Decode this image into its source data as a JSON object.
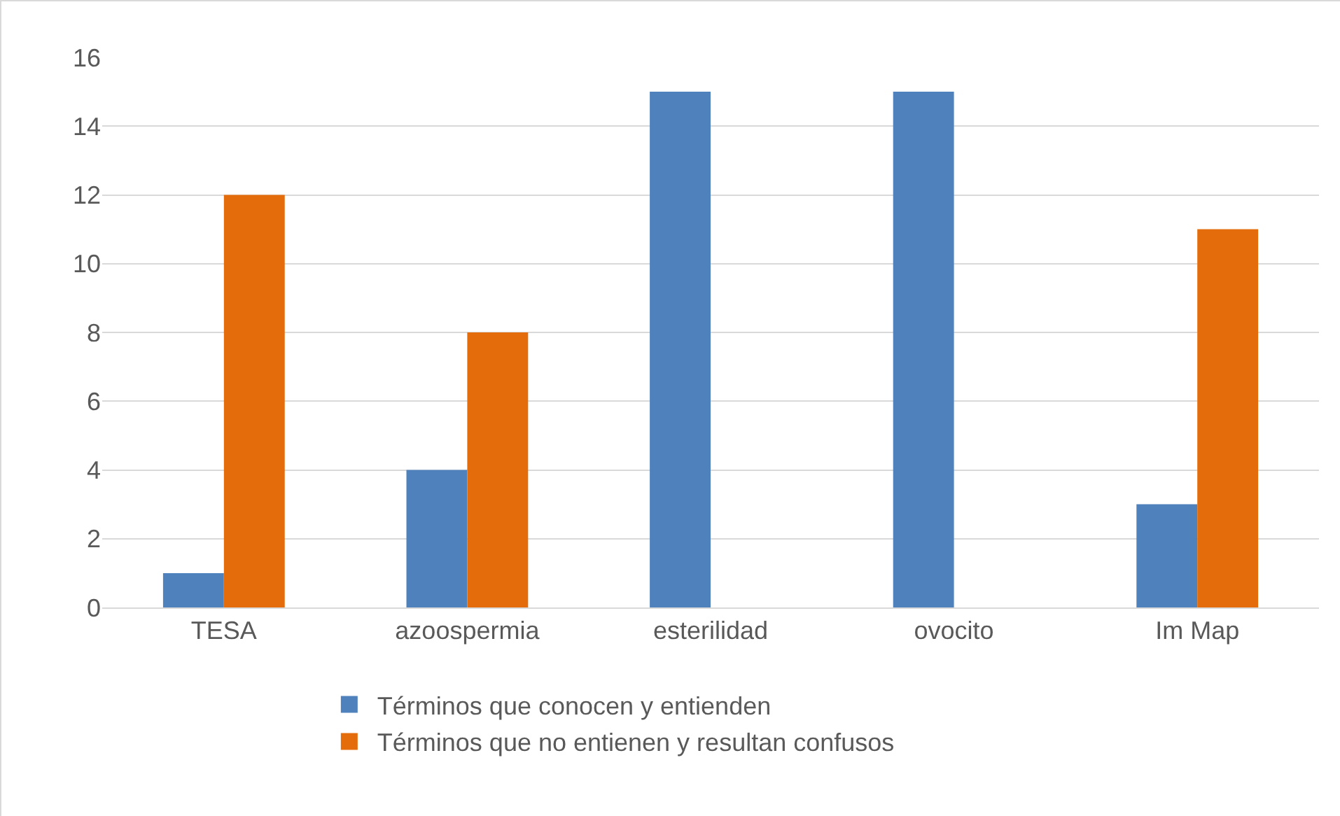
{
  "chart_data": {
    "type": "bar",
    "categories": [
      "TESA",
      "azoospermia",
      "esterilidad",
      "ovocito",
      "Im Map"
    ],
    "series": [
      {
        "name": "Términos que conocen y entienden",
        "color": "#4f81bd",
        "values": [
          1,
          4,
          15,
          15,
          3
        ]
      },
      {
        "name": "Términos que no entienen y resultan confusos",
        "color": "#e46c0a",
        "values": [
          12,
          8,
          0,
          0,
          11
        ]
      }
    ],
    "ylim": [
      0,
      16
    ],
    "yticks": [
      0,
      2,
      4,
      6,
      8,
      10,
      12,
      14,
      16
    ],
    "grid": "y",
    "legend": "bottom"
  }
}
